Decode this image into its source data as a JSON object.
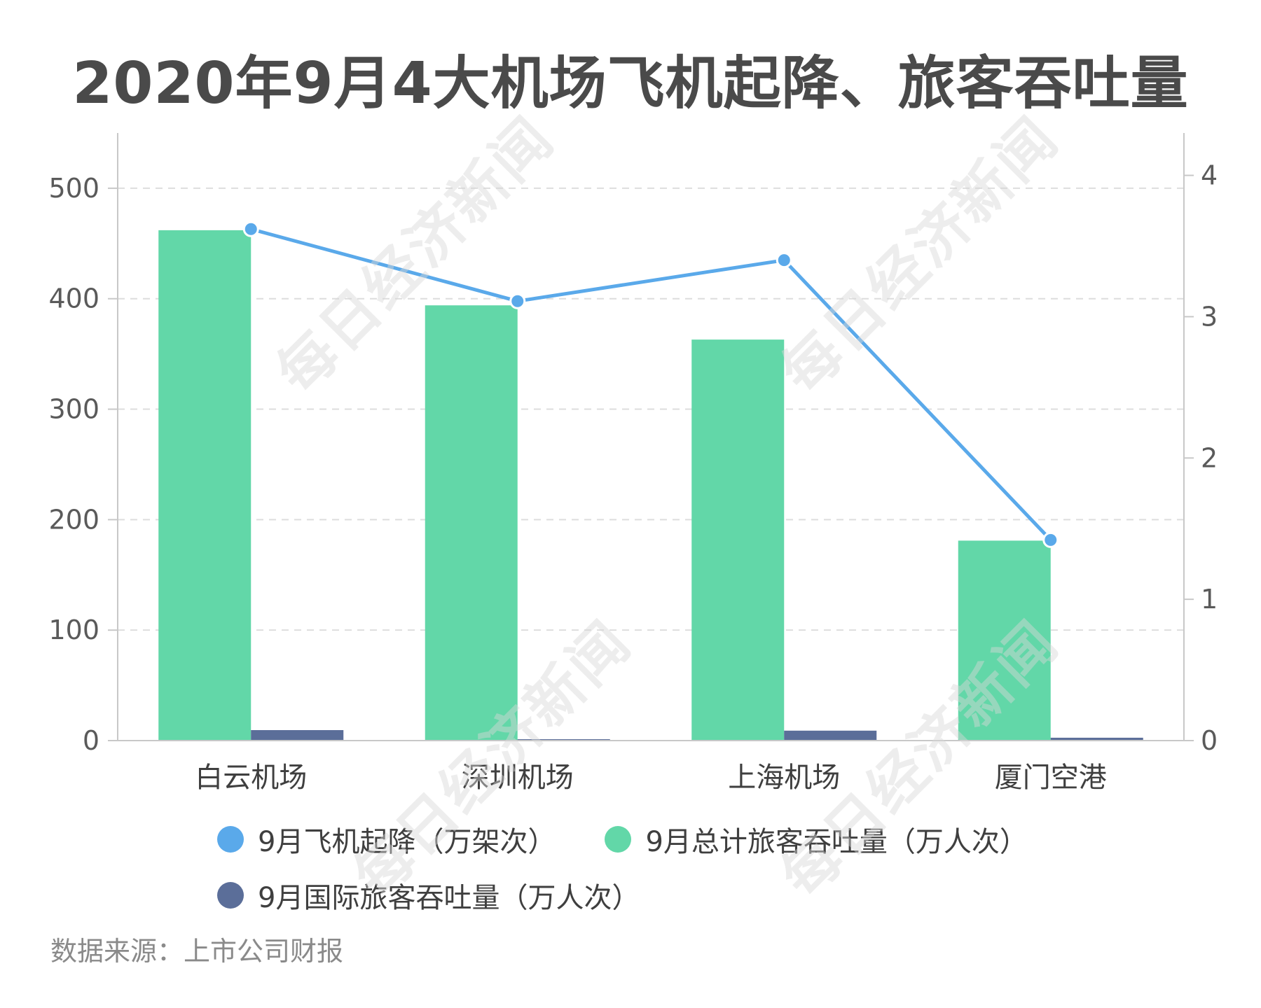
{
  "title": "2020年9月4大机场飞机起降、旅客吞吐量",
  "source": "数据来源：上市公司财报",
  "watermark": "每日经济新闻",
  "colors": {
    "flights": "#5aa9ea",
    "total_passengers": "#62d7a8",
    "intl_passengers": "#5b6e99"
  },
  "chart_data": {
    "type": "bar",
    "categories": [
      "白云机场",
      "深圳机场",
      "上海机场",
      "厦门空港"
    ],
    "left_axis": {
      "ticks": [
        "0",
        "100",
        "200",
        "300",
        "400",
        "500"
      ],
      "ylim": [
        0,
        550
      ]
    },
    "right_axis": {
      "ticks": [
        "0",
        "1",
        "2",
        "3",
        "4"
      ],
      "ylim": [
        0,
        4.3
      ]
    },
    "series": [
      {
        "name": "9月飞机起降（万架次）",
        "type": "line",
        "axis": "right",
        "color": "#5aa9ea",
        "values": [
          3.62,
          3.11,
          3.4,
          1.42
        ]
      },
      {
        "name": "9月总计旅客吞吐量（万人次）",
        "type": "bar",
        "axis": "left",
        "color": "#62d7a8",
        "values": [
          462,
          394,
          363,
          181
        ]
      },
      {
        "name": "9月国际旅客吞吐量（万人次）",
        "type": "bar",
        "axis": "left",
        "color": "#5b6e99",
        "values": [
          9.5,
          0.8,
          9.0,
          2.6
        ]
      }
    ],
    "grid": true,
    "legend_position": "bottom"
  }
}
